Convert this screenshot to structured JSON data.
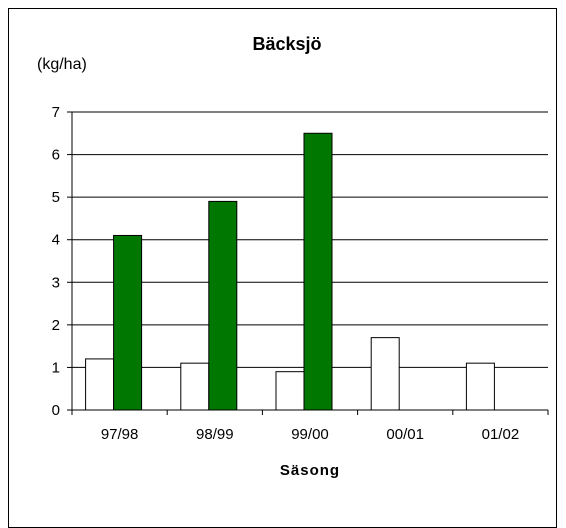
{
  "chart_data": {
    "type": "bar",
    "title": "Bäcksjö",
    "ylabel": "(kg/ha)",
    "xlabel": "Säsong",
    "categories": [
      "97/98",
      "98/99",
      "99/00",
      "00/01",
      "01/02"
    ],
    "ylim": [
      0,
      7
    ],
    "yticks": [
      0,
      1,
      2,
      3,
      4,
      5,
      6,
      7
    ],
    "grid": true,
    "series": [
      {
        "values": [
          1.2,
          1.1,
          0.9,
          1.7,
          1.1
        ],
        "color": "#ffffff"
      },
      {
        "values": [
          4.1,
          4.9,
          6.5,
          null,
          null
        ],
        "color": "#007700"
      }
    ]
  }
}
